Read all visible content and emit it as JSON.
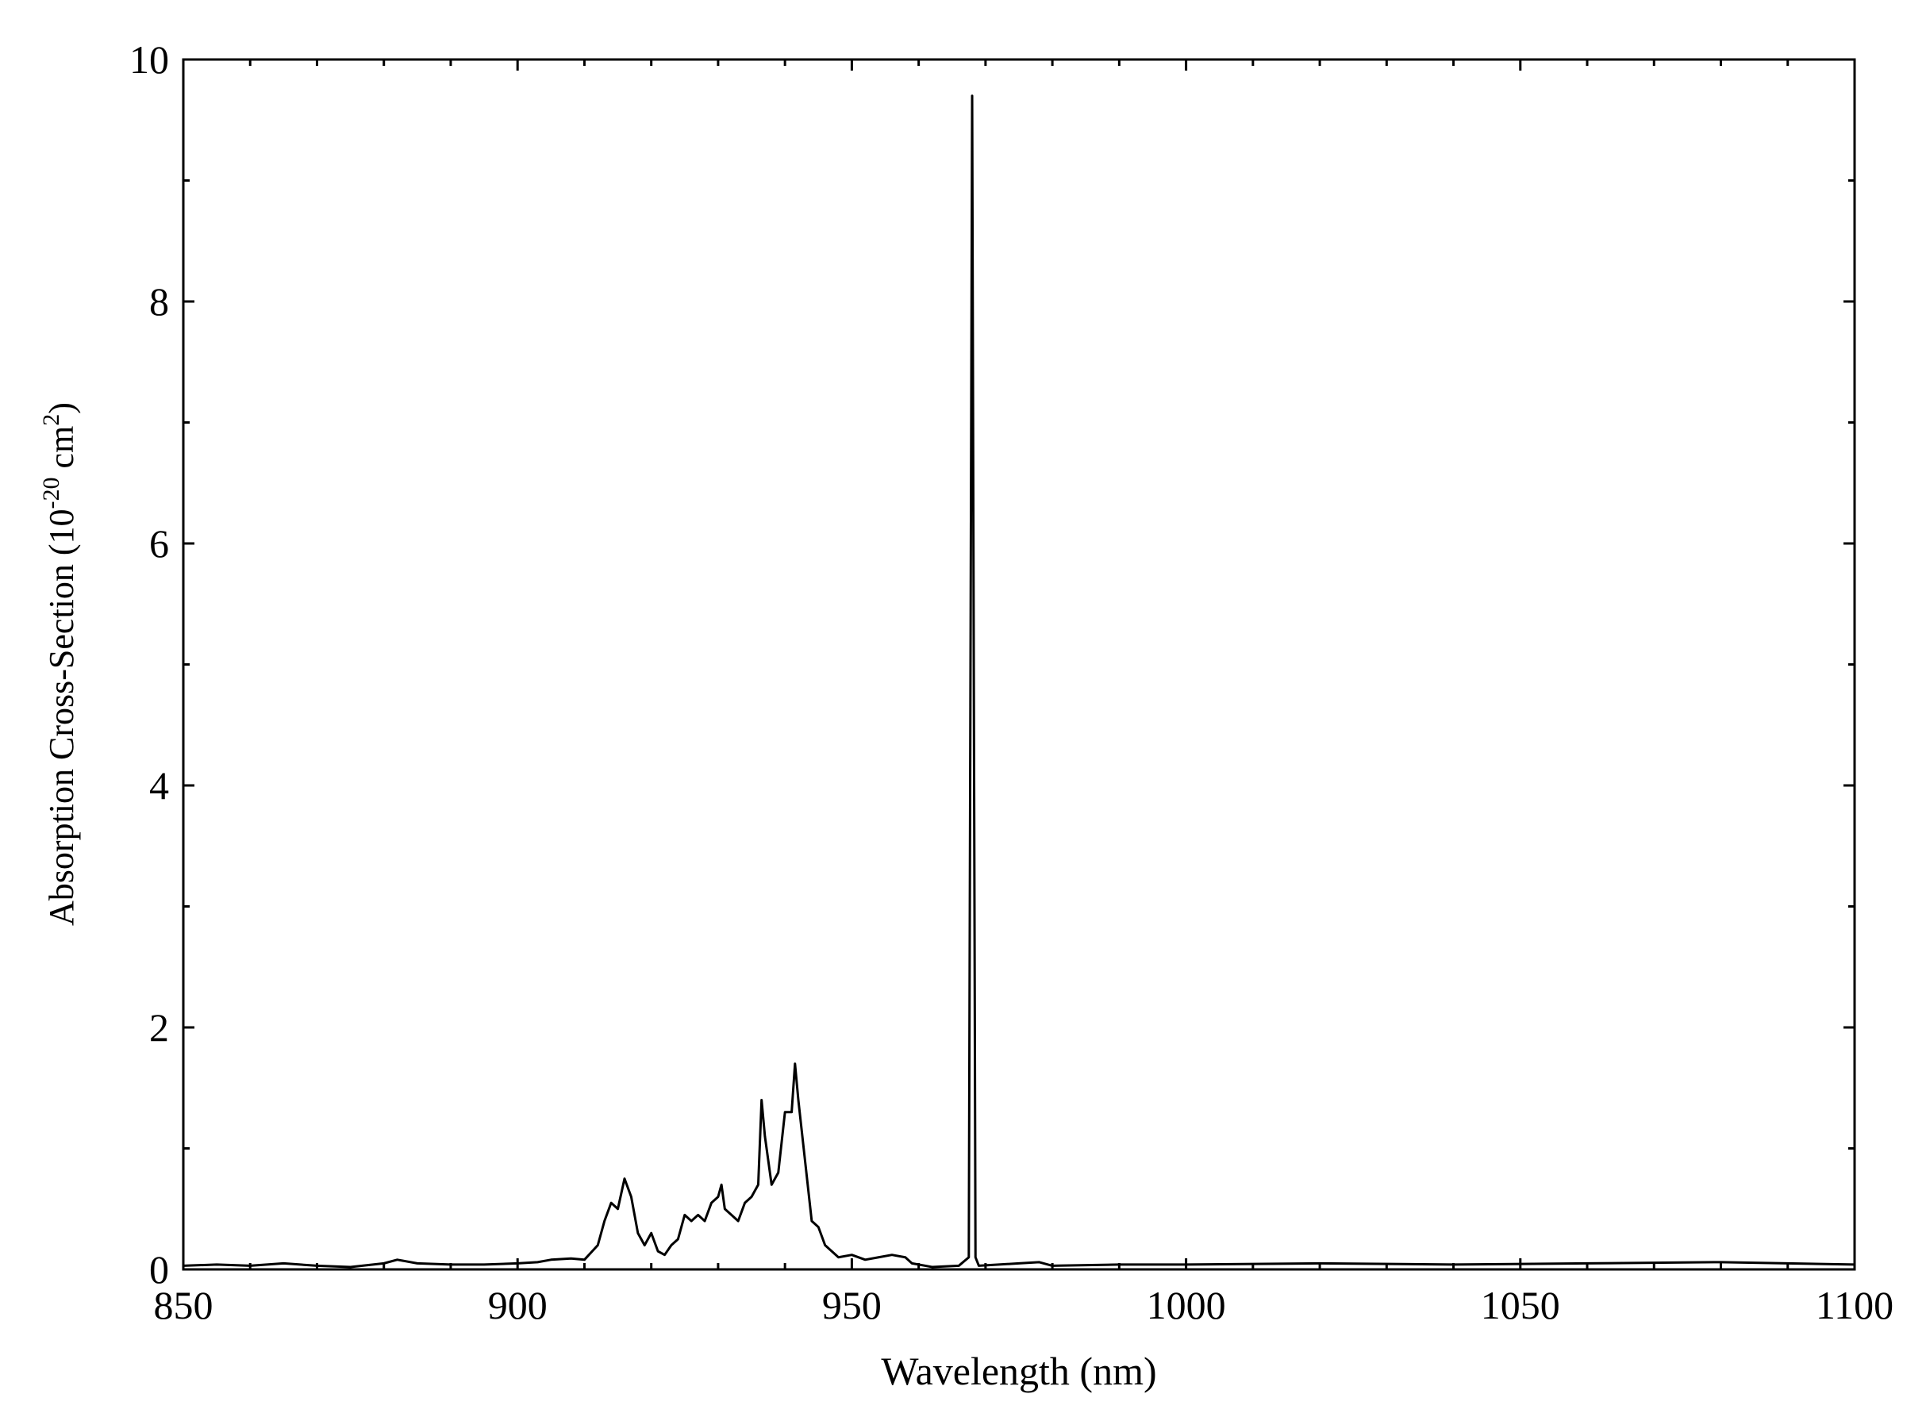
{
  "chart_data": {
    "type": "line",
    "x_label": "Wavelength (nm)",
    "y_label_parts": [
      "Absorption Cross-Section (10",
      "-20",
      " cm",
      "2",
      ")"
    ],
    "xlim": [
      850,
      1100
    ],
    "ylim": [
      0,
      10
    ],
    "xticks": [
      850,
      900,
      950,
      1000,
      1050,
      1100
    ],
    "yticks": [
      0,
      2,
      4,
      6,
      8,
      10
    ],
    "x_minor_ticks": [
      860,
      870,
      880,
      890,
      910,
      920,
      930,
      940,
      960,
      970,
      980,
      990,
      1010,
      1020,
      1030,
      1040,
      1060,
      1070,
      1080,
      1090
    ],
    "y_minor_ticks": [
      1,
      3,
      5,
      7,
      9
    ],
    "series": [
      {
        "color": "#000000",
        "x": [
          850,
          855,
          860,
          865,
          870,
          875,
          880,
          882,
          885,
          890,
          895,
          900,
          903,
          905,
          908,
          910,
          912,
          913,
          914,
          915,
          916,
          917,
          918,
          919,
          920,
          921,
          922,
          923,
          924,
          925,
          926,
          927,
          928,
          929,
          930,
          930.5,
          931,
          932,
          933,
          934,
          935,
          936,
          936.5,
          937,
          938,
          939,
          940,
          941,
          941.5,
          942,
          943,
          944,
          945,
          946,
          947,
          948,
          950,
          952,
          954,
          956,
          958,
          959,
          962,
          966,
          967.5,
          968,
          968.5,
          969,
          975,
          978,
          980,
          990,
          1000,
          1020,
          1040,
          1060,
          1080,
          1100
        ],
        "values": [
          0.03,
          0.04,
          0.03,
          0.05,
          0.03,
          0.02,
          0.05,
          0.08,
          0.05,
          0.04,
          0.04,
          0.05,
          0.06,
          0.08,
          0.09,
          0.08,
          0.2,
          0.4,
          0.55,
          0.5,
          0.75,
          0.6,
          0.3,
          0.2,
          0.3,
          0.15,
          0.12,
          0.2,
          0.25,
          0.45,
          0.4,
          0.45,
          0.4,
          0.55,
          0.6,
          0.7,
          0.5,
          0.45,
          0.4,
          0.55,
          0.6,
          0.7,
          1.4,
          1.1,
          0.7,
          0.8,
          1.3,
          1.3,
          1.7,
          1.4,
          0.9,
          0.4,
          0.35,
          0.2,
          0.15,
          0.1,
          0.12,
          0.08,
          0.1,
          0.12,
          0.1,
          0.05,
          0.02,
          0.03,
          0.1,
          9.7,
          0.1,
          0.03,
          0.05,
          0.06,
          0.03,
          0.04,
          0.04,
          0.05,
          0.04,
          0.05,
          0.06,
          0.04
        ]
      }
    ]
  }
}
